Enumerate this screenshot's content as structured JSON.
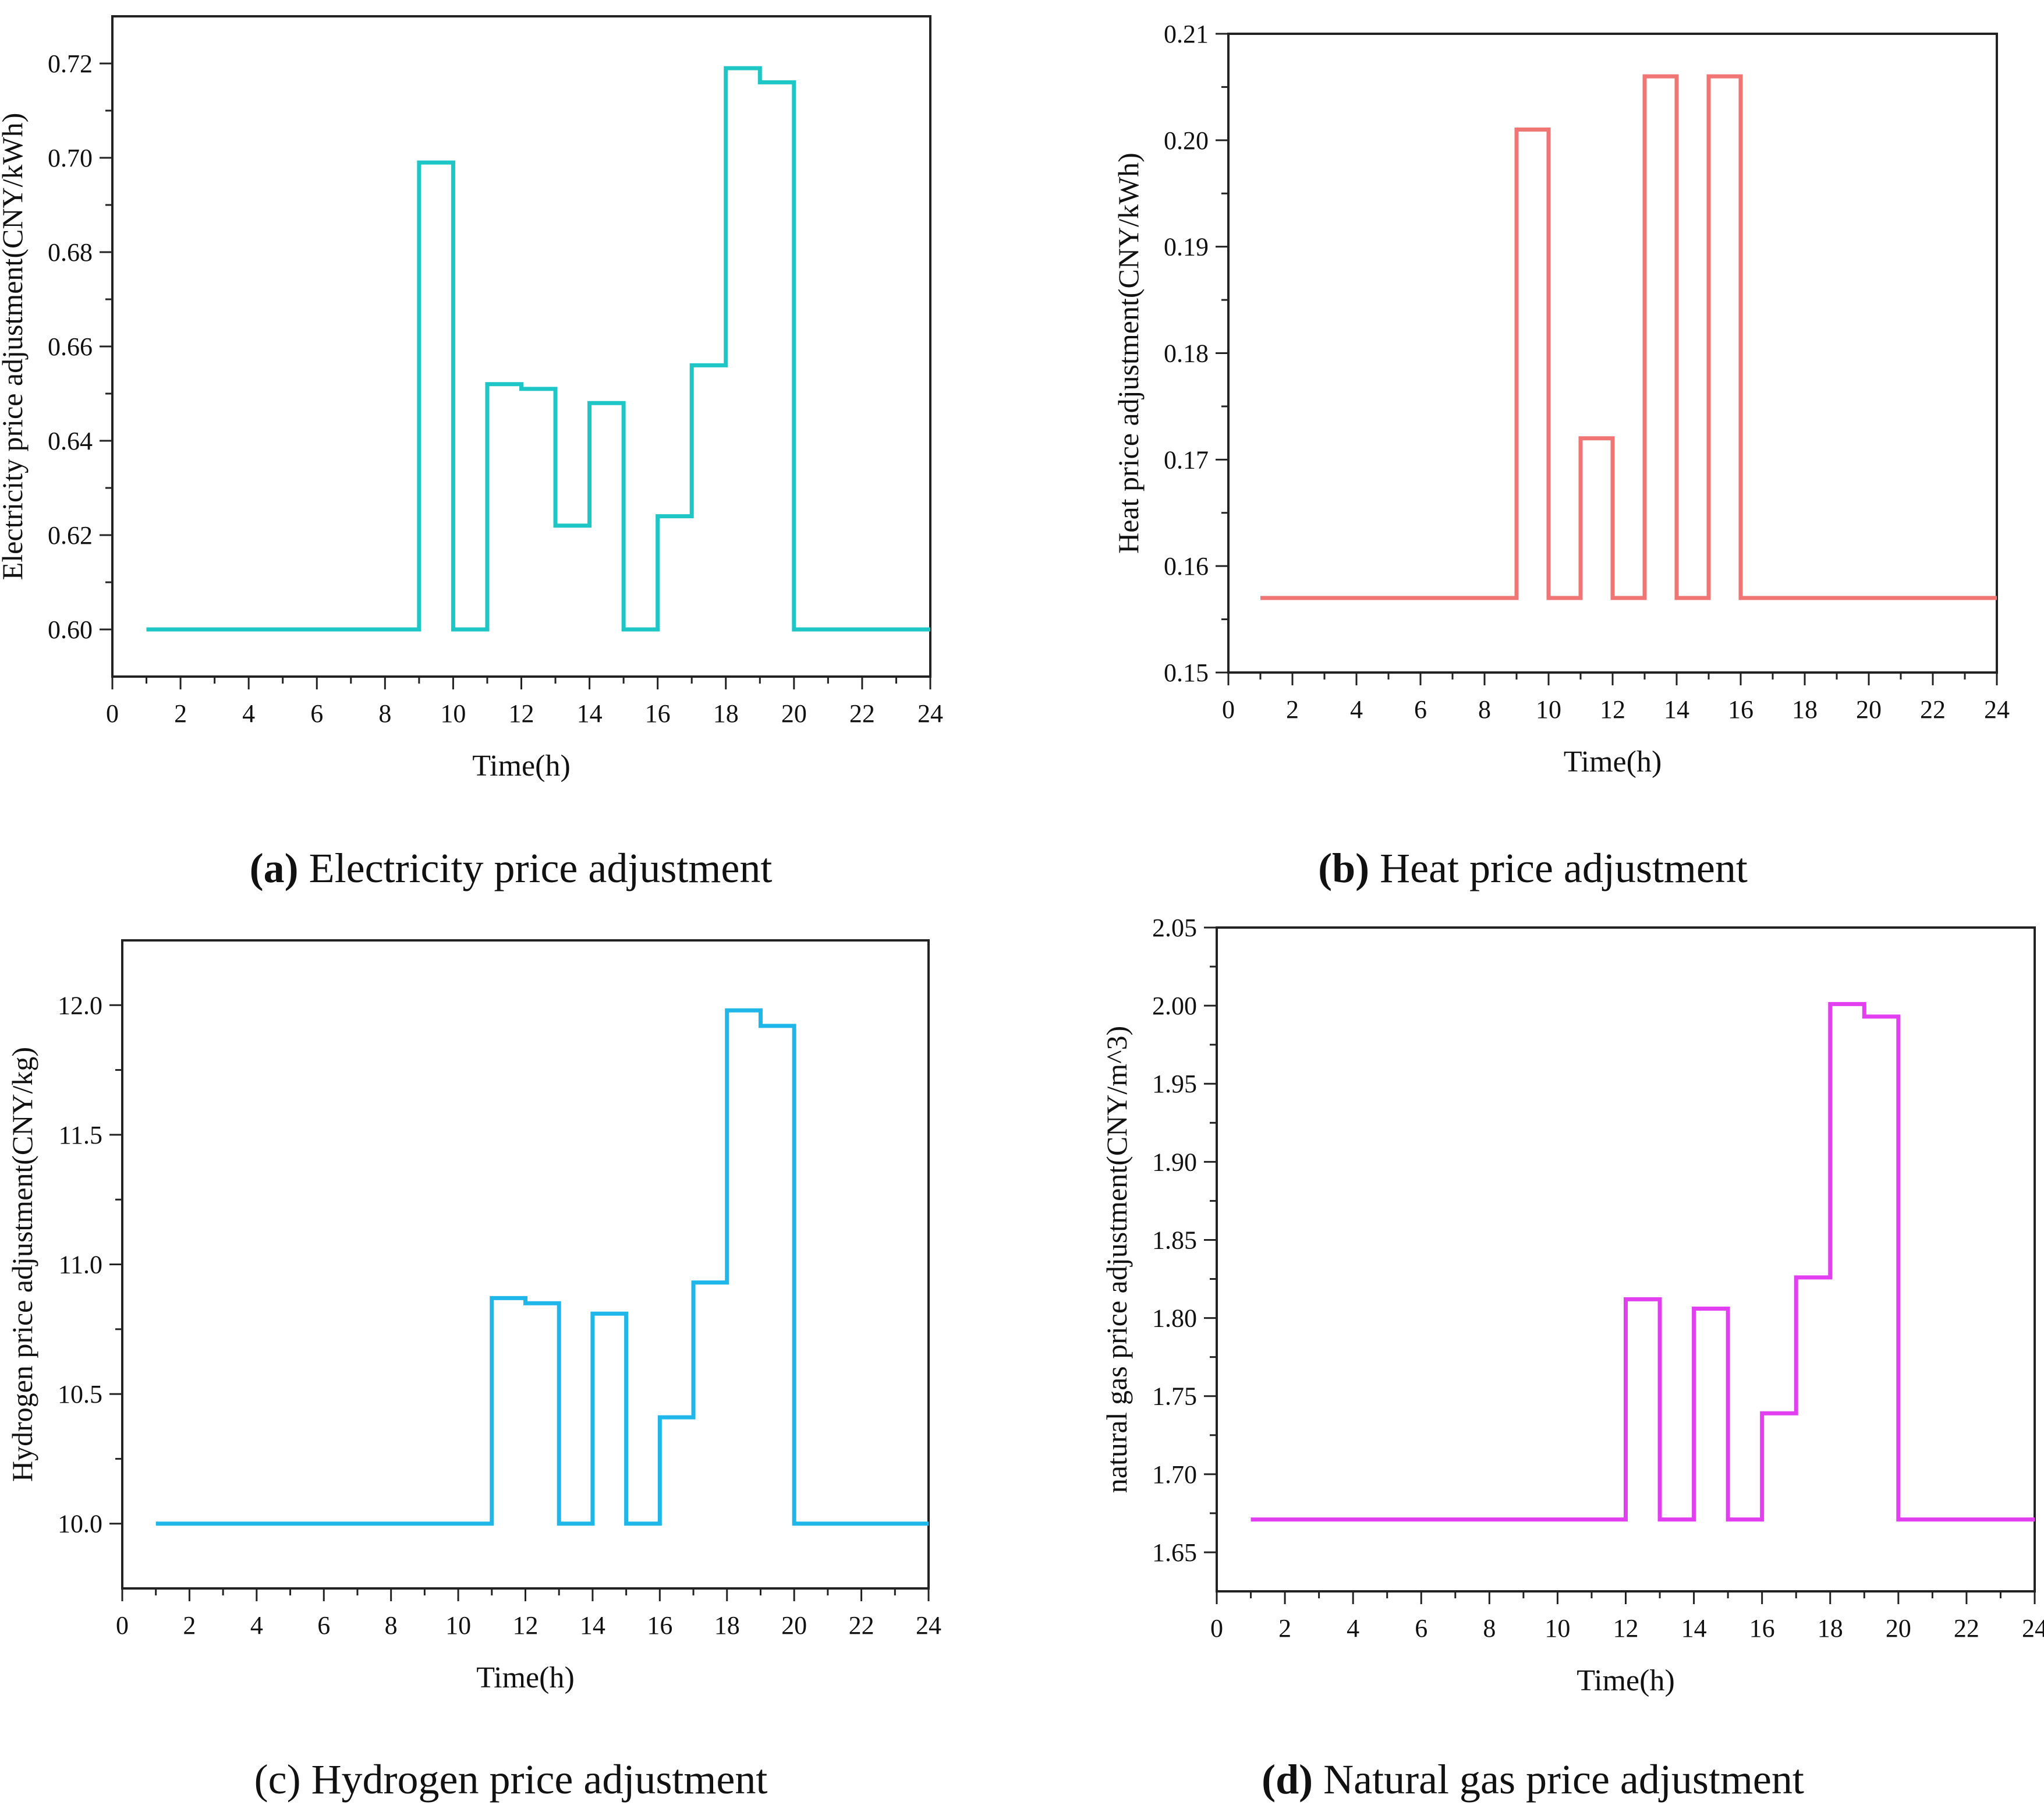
{
  "captions": [
    {
      "label": "(a)",
      "text": "Electricity price adjustment"
    },
    {
      "label": "(b)",
      "text": "Heat price adjustment"
    },
    {
      "label": "(c)",
      "text": "Hydrogen price adjustment"
    },
    {
      "label": "(d)",
      "text": "Natural gas price adjustment"
    }
  ],
  "chart_data": [
    {
      "type": "line",
      "step": true,
      "xlabel": "Time(h)",
      "ylabel": "Electricity price adjustment(CNY/kWh)",
      "xlim": [
        0,
        24
      ],
      "ylim": [
        0.59,
        0.73
      ],
      "xticks": [
        "0",
        "2",
        "4",
        "6",
        "8",
        "10",
        "12",
        "14",
        "16",
        "18",
        "20",
        "22",
        "24"
      ],
      "yticks": [
        "0.60",
        "0.62",
        "0.64",
        "0.66",
        "0.68",
        "0.70",
        "0.72"
      ],
      "color": "#1ec6c6",
      "x": [
        1,
        2,
        3,
        4,
        5,
        6,
        7,
        8,
        9,
        10,
        11,
        12,
        13,
        14,
        15,
        16,
        17,
        18,
        19,
        20,
        21,
        22,
        23,
        24
      ],
      "y": [
        0.6,
        0.6,
        0.6,
        0.6,
        0.6,
        0.6,
        0.6,
        0.6,
        0.699,
        0.6,
        0.652,
        0.651,
        0.622,
        0.648,
        0.6,
        0.624,
        0.656,
        0.719,
        0.716,
        0.6,
        0.6,
        0.6,
        0.6,
        0.6
      ]
    },
    {
      "type": "line",
      "step": true,
      "xlabel": "Time(h)",
      "ylabel": "Heat price adjustment(CNY/kWh)",
      "xlim": [
        0,
        24
      ],
      "ylim": [
        0.15,
        0.21
      ],
      "xticks": [
        "0",
        "2",
        "4",
        "6",
        "8",
        "10",
        "12",
        "14",
        "16",
        "18",
        "20",
        "22",
        "24"
      ],
      "yticks": [
        "0.15",
        "0.16",
        "0.17",
        "0.18",
        "0.19",
        "0.20",
        "0.21"
      ],
      "color": "#f07575",
      "x": [
        1,
        2,
        3,
        4,
        5,
        6,
        7,
        8,
        9,
        10,
        11,
        12,
        13,
        14,
        15,
        16,
        17,
        18,
        19,
        20,
        21,
        22,
        23,
        24
      ],
      "y": [
        0.157,
        0.157,
        0.157,
        0.157,
        0.157,
        0.157,
        0.157,
        0.157,
        0.201,
        0.157,
        0.172,
        0.157,
        0.206,
        0.157,
        0.206,
        0.157,
        0.157,
        0.157,
        0.157,
        0.157,
        0.157,
        0.157,
        0.157,
        0.157
      ]
    },
    {
      "type": "line",
      "step": true,
      "xlabel": "Time(h)",
      "ylabel": "Hydrogen price adjustment(CNY/kg)",
      "xlim": [
        0,
        24
      ],
      "ylim": [
        9.75,
        12.25
      ],
      "xticks": [
        "0",
        "2",
        "4",
        "6",
        "8",
        "10",
        "12",
        "14",
        "16",
        "18",
        "20",
        "22",
        "24"
      ],
      "yticks": [
        "10.0",
        "10.5",
        "11.0",
        "11.5",
        "12.0"
      ],
      "color": "#1fb6ea",
      "x": [
        1,
        2,
        3,
        4,
        5,
        6,
        7,
        8,
        9,
        10,
        11,
        12,
        13,
        14,
        15,
        16,
        17,
        18,
        19,
        20,
        21,
        22,
        23,
        24
      ],
      "y": [
        10.0,
        10.0,
        10.0,
        10.0,
        10.0,
        10.0,
        10.0,
        10.0,
        10.0,
        10.0,
        10.87,
        10.85,
        10.0,
        10.81,
        10.0,
        10.41,
        10.93,
        11.98,
        11.92,
        10.0,
        10.0,
        10.0,
        10.0,
        10.0
      ]
    },
    {
      "type": "line",
      "step": true,
      "xlabel": "Time(h)",
      "ylabel": "natural gas price adjustment(CNY/m^3)",
      "xlim": [
        0,
        24
      ],
      "ylim": [
        1.625,
        2.05
      ],
      "xticks": [
        "0",
        "2",
        "4",
        "6",
        "8",
        "10",
        "12",
        "14",
        "16",
        "18",
        "20",
        "22",
        "24"
      ],
      "yticks": [
        "1.65",
        "1.70",
        "1.75",
        "1.80",
        "1.85",
        "1.90",
        "1.95",
        "2.00",
        "2.05"
      ],
      "color": "#e23ff0",
      "x": [
        1,
        2,
        3,
        4,
        5,
        6,
        7,
        8,
        9,
        10,
        11,
        12,
        13,
        14,
        15,
        16,
        17,
        18,
        19,
        20,
        21,
        22,
        23,
        24
      ],
      "y": [
        1.671,
        1.671,
        1.671,
        1.671,
        1.671,
        1.671,
        1.671,
        1.671,
        1.671,
        1.671,
        1.671,
        1.812,
        1.671,
        1.806,
        1.671,
        1.739,
        1.826,
        2.001,
        1.993,
        1.671,
        1.671,
        1.671,
        1.671,
        1.671
      ]
    }
  ]
}
